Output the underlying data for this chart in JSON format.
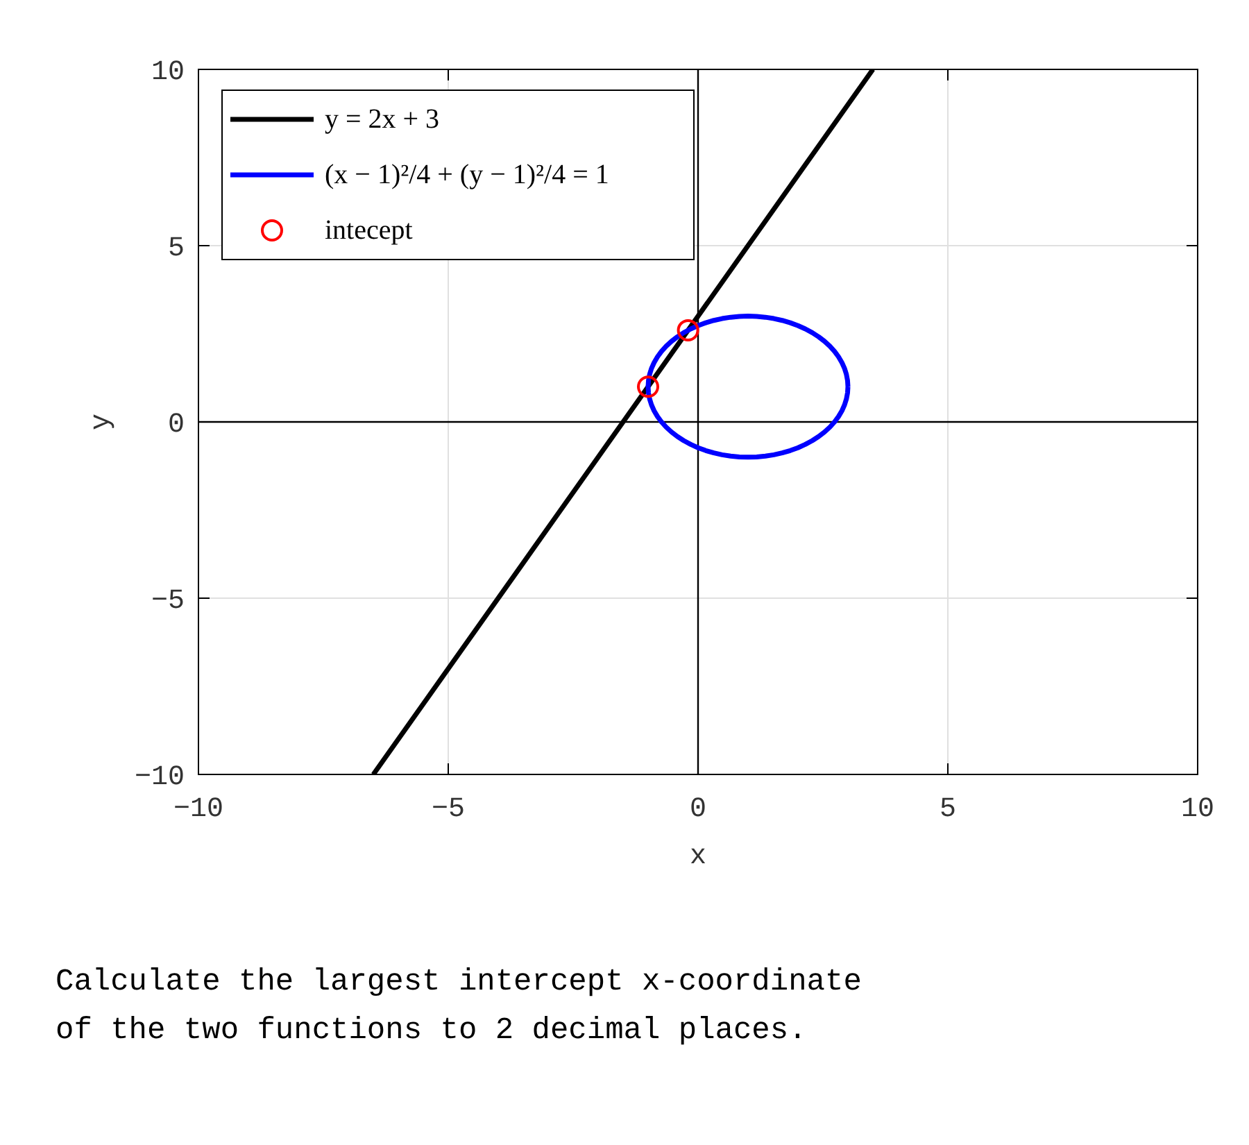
{
  "chart_data": {
    "type": "line",
    "xlabel": "x",
    "ylabel": "y",
    "xlim": [
      -10,
      10
    ],
    "ylim": [
      -10,
      10
    ],
    "xticks": [
      -10,
      -5,
      0,
      5,
      10
    ],
    "yticks": [
      -10,
      -5,
      0,
      5,
      10
    ],
    "grid": true,
    "legend": "top left",
    "annotations": [
      "Calculate the largest intercept x-coordinate\nof the two functions to 2 decimal places."
    ],
    "series": [
      {
        "name": "y = 2x + 3",
        "type": "line",
        "color": "#000000",
        "x": [
          -6.5,
          3.5
        ],
        "values": [
          -10,
          10
        ]
      },
      {
        "name": "(x − 1)²/4 + (y − 1)²/4 = 1",
        "type": "line",
        "color": "#0000ff"
      },
      {
        "name": "intecept",
        "type": "scatter",
        "color": "#ff0000",
        "marker": "circle",
        "x": [
          -1,
          -0.2
        ],
        "values": [
          1,
          2.6
        ]
      }
    ]
  }
}
